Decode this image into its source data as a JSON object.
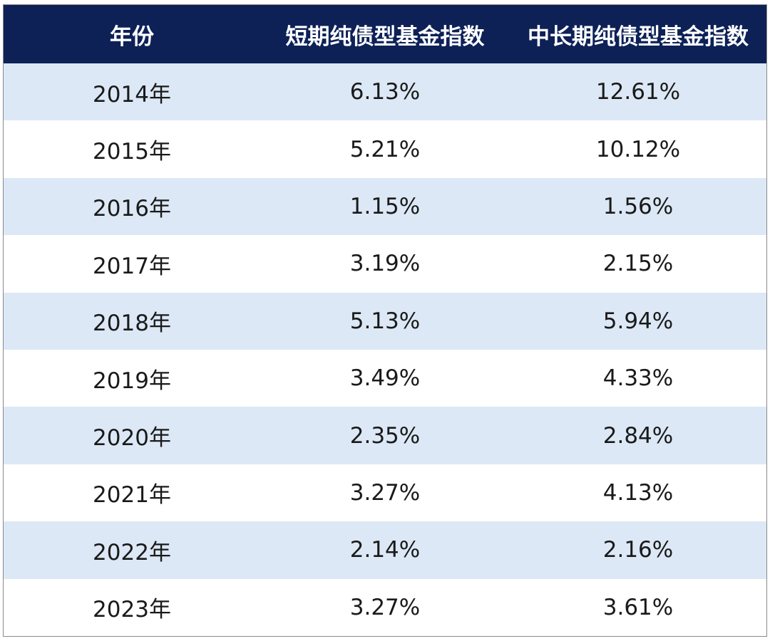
{
  "chart_data": {
    "type": "table",
    "columns": [
      "年份",
      "短期纯债型基金指数",
      "中长期纯债型基金指数"
    ],
    "rows": [
      [
        "2014年",
        "6.13%",
        "12.61%"
      ],
      [
        "2015年",
        "5.21%",
        "10.12%"
      ],
      [
        "2016年",
        "1.15%",
        "1.56%"
      ],
      [
        "2017年",
        "3.19%",
        "2.15%"
      ],
      [
        "2018年",
        "5.13%",
        "5.94%"
      ],
      [
        "2019年",
        "3.49%",
        "4.33%"
      ],
      [
        "2020年",
        "2.35%",
        "2.84%"
      ],
      [
        "2021年",
        "3.27%",
        "4.13%"
      ],
      [
        "2022年",
        "2.14%",
        "2.16%"
      ],
      [
        "2023年",
        "3.27%",
        "3.61%"
      ]
    ]
  },
  "colors": {
    "header_bg": "#0d2157",
    "header_text": "#ffffff",
    "stripe_bg": "#dce8f5",
    "plain_bg": "#ffffff",
    "cell_text": "#1a1a1a"
  }
}
